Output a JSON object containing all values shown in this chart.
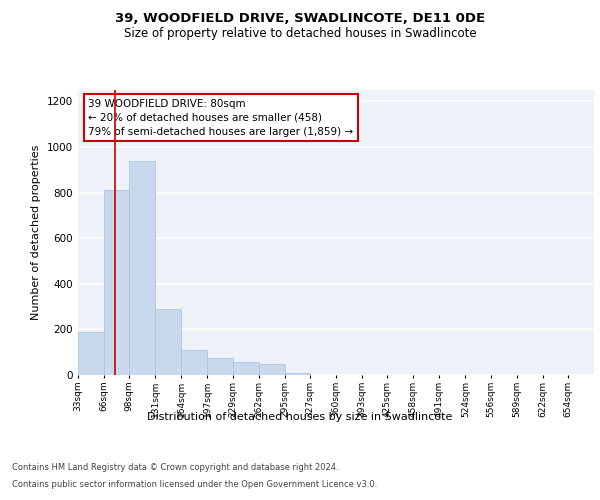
{
  "title": "39, WOODFIELD DRIVE, SWADLINCOTE, DE11 0DE",
  "subtitle": "Size of property relative to detached houses in Swadlincote",
  "xlabel": "Distribution of detached houses by size in Swadlincote",
  "ylabel": "Number of detached properties",
  "bar_color": "#c8d9ee",
  "bar_edge_color": "#a8c0de",
  "background_color": "#eef2fa",
  "grid_color": "#ffffff",
  "annotation_title": "39 WOODFIELD DRIVE: 80sqm",
  "annotation_line1": "← 20% of detached houses are smaller (458)",
  "annotation_line2": "79% of semi-detached houses are larger (1,859) →",
  "vline_x": 80,
  "vline_color": "#cc0000",
  "bin_edges": [
    33,
    66,
    98,
    131,
    164,
    197,
    229,
    262,
    295,
    327,
    360,
    393,
    425,
    458,
    491,
    524,
    556,
    589,
    622,
    654,
    687
  ],
  "bar_heights": [
    190,
    810,
    940,
    290,
    110,
    75,
    55,
    50,
    10,
    0,
    0,
    0,
    0,
    0,
    0,
    0,
    0,
    0,
    0,
    0
  ],
  "ylim": [
    0,
    1250
  ],
  "yticks": [
    0,
    200,
    400,
    600,
    800,
    1000,
    1200
  ],
  "footer_line1": "Contains HM Land Registry data © Crown copyright and database right 2024.",
  "footer_line2": "Contains public sector information licensed under the Open Government Licence v3.0."
}
